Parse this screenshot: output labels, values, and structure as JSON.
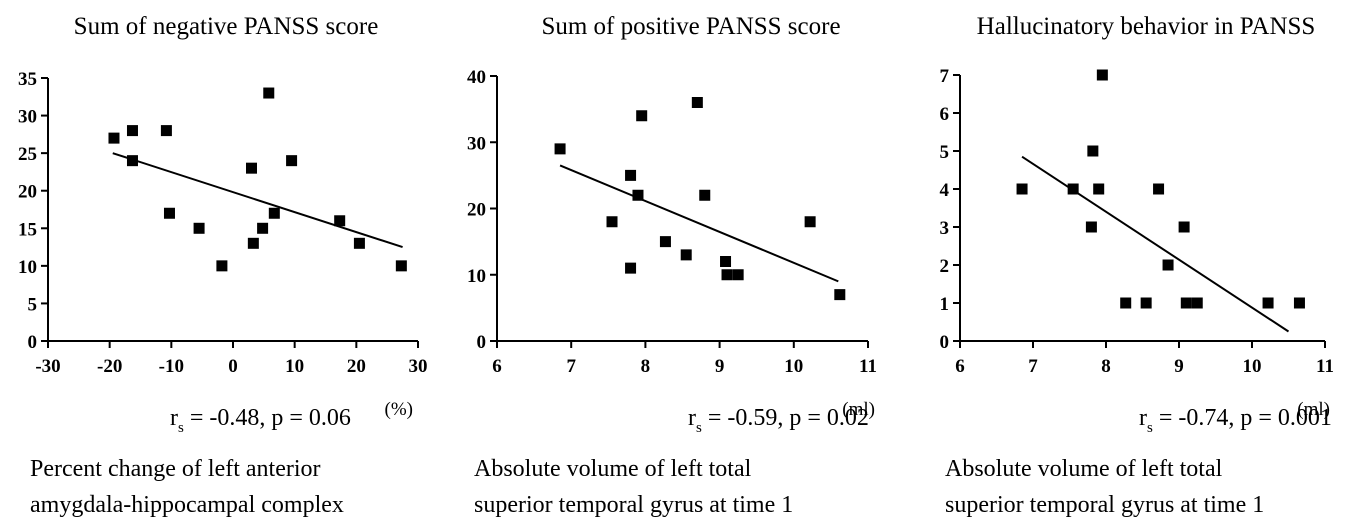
{
  "chart_data": [
    {
      "type": "scatter",
      "title": "Sum of negative PANSS score",
      "x_unit": "(%)",
      "stat": {
        "prefix": "r",
        "subscript": "s",
        "text": " = -0.48, p = 0.06"
      },
      "xlabel_lines": [
        "Percent change of left anterior",
        "amygdala-hippocampal complex"
      ],
      "xlim": [
        -30,
        30
      ],
      "ylim": [
        0,
        35
      ],
      "xticks": [
        "-30",
        "-20",
        "-10",
        "0",
        "10",
        "20",
        "30"
      ],
      "yticks": [
        "0",
        "5",
        "10",
        "15",
        "20",
        "25",
        "30",
        "35"
      ],
      "points": [
        {
          "x": -19.3,
          "y": 27
        },
        {
          "x": -16.3,
          "y": 28
        },
        {
          "x": -16.3,
          "y": 24
        },
        {
          "x": -10.8,
          "y": 28
        },
        {
          "x": -10.3,
          "y": 17
        },
        {
          "x": -5.5,
          "y": 15
        },
        {
          "x": -1.8,
          "y": 10
        },
        {
          "x": 3.0,
          "y": 23
        },
        {
          "x": 3.3,
          "y": 13
        },
        {
          "x": 4.8,
          "y": 15
        },
        {
          "x": 5.8,
          "y": 33
        },
        {
          "x": 6.7,
          "y": 17
        },
        {
          "x": 9.5,
          "y": 24
        },
        {
          "x": 17.3,
          "y": 16
        },
        {
          "x": 20.5,
          "y": 13
        },
        {
          "x": 27.3,
          "y": 10
        }
      ],
      "trend": [
        {
          "x": -19.5,
          "y": 25
        },
        {
          "x": 27.5,
          "y": 12.5
        }
      ]
    },
    {
      "type": "scatter",
      "title": "Sum of positive PANSS score",
      "x_unit": "(ml)",
      "stat": {
        "prefix": "r",
        "subscript": "s",
        "text": " = -0.59, p = 0.02"
      },
      "xlabel_lines": [
        "Absolute volume of left total",
        "superior temporal gyrus at time 1"
      ],
      "xlim": [
        6,
        11
      ],
      "ylim": [
        0,
        40
      ],
      "xticks": [
        "6",
        "7",
        "8",
        "9",
        "10",
        "11"
      ],
      "yticks": [
        "0",
        "10",
        "20",
        "30",
        "40"
      ],
      "points": [
        {
          "x": 6.85,
          "y": 29
        },
        {
          "x": 7.55,
          "y": 18
        },
        {
          "x": 7.8,
          "y": 11
        },
        {
          "x": 7.8,
          "y": 25
        },
        {
          "x": 7.9,
          "y": 22
        },
        {
          "x": 7.95,
          "y": 34
        },
        {
          "x": 8.27,
          "y": 15
        },
        {
          "x": 8.55,
          "y": 13
        },
        {
          "x": 8.7,
          "y": 36
        },
        {
          "x": 8.8,
          "y": 22
        },
        {
          "x": 9.08,
          "y": 12
        },
        {
          "x": 9.1,
          "y": 10
        },
        {
          "x": 9.25,
          "y": 10
        },
        {
          "x": 10.22,
          "y": 18
        },
        {
          "x": 10.62,
          "y": 7
        }
      ],
      "trend": [
        {
          "x": 6.85,
          "y": 26.5
        },
        {
          "x": 10.6,
          "y": 9
        }
      ]
    },
    {
      "type": "scatter",
      "title": "Hallucinatory behavior in PANSS",
      "x_unit": "(ml)",
      "stat": {
        "prefix": "r",
        "subscript": "s",
        "text": " = -0.74, p = 0.001"
      },
      "xlabel_lines": [
        "Absolute volume of left total",
        "superior temporal gyrus at time 1"
      ],
      "xlim": [
        6,
        11
      ],
      "ylim": [
        0,
        7
      ],
      "xticks": [
        "6",
        "7",
        "8",
        "9",
        "10",
        "11"
      ],
      "yticks": [
        "0",
        "1",
        "2",
        "3",
        "4",
        "5",
        "6",
        "7"
      ],
      "points": [
        {
          "x": 6.85,
          "y": 4
        },
        {
          "x": 7.55,
          "y": 4
        },
        {
          "x": 7.8,
          "y": 3
        },
        {
          "x": 7.82,
          "y": 5
        },
        {
          "x": 7.9,
          "y": 4
        },
        {
          "x": 7.95,
          "y": 7
        },
        {
          "x": 8.27,
          "y": 1
        },
        {
          "x": 8.55,
          "y": 1
        },
        {
          "x": 8.72,
          "y": 4
        },
        {
          "x": 8.85,
          "y": 2
        },
        {
          "x": 9.07,
          "y": 3
        },
        {
          "x": 9.1,
          "y": 1
        },
        {
          "x": 9.25,
          "y": 1
        },
        {
          "x": 10.22,
          "y": 1
        },
        {
          "x": 10.65,
          "y": 1
        }
      ],
      "trend": [
        {
          "x": 6.85,
          "y": 4.85
        },
        {
          "x": 10.5,
          "y": 0.25
        }
      ]
    }
  ]
}
